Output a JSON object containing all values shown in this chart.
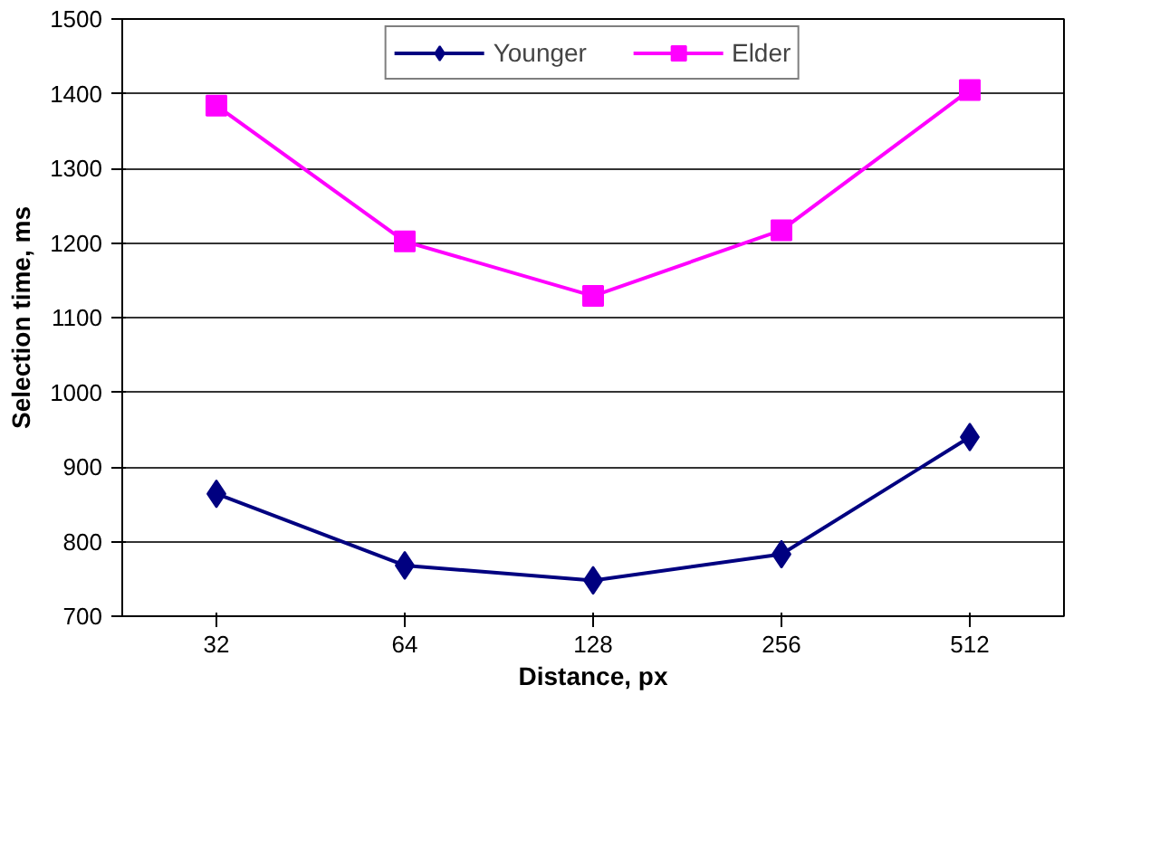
{
  "chart_data": {
    "type": "line",
    "ylabel": "Selection time, ms",
    "xlabel": "Distance, px",
    "categories": [
      "32",
      "64",
      "128",
      "256",
      "512"
    ],
    "series": [
      {
        "name": "Younger",
        "color": "#000080",
        "marker": "diamond",
        "values": [
          864,
          768,
          748,
          783,
          940
        ]
      },
      {
        "name": "Elder",
        "color": "#ff00ff",
        "marker": "square",
        "values": [
          1384,
          1202,
          1129,
          1217,
          1405
        ]
      }
    ],
    "ylim": [
      700,
      1500
    ],
    "yticks": [
      700,
      800,
      900,
      1000,
      1100,
      1200,
      1300,
      1400,
      1500
    ],
    "grid": "y",
    "legend": "top",
    "line_style": "solid"
  }
}
